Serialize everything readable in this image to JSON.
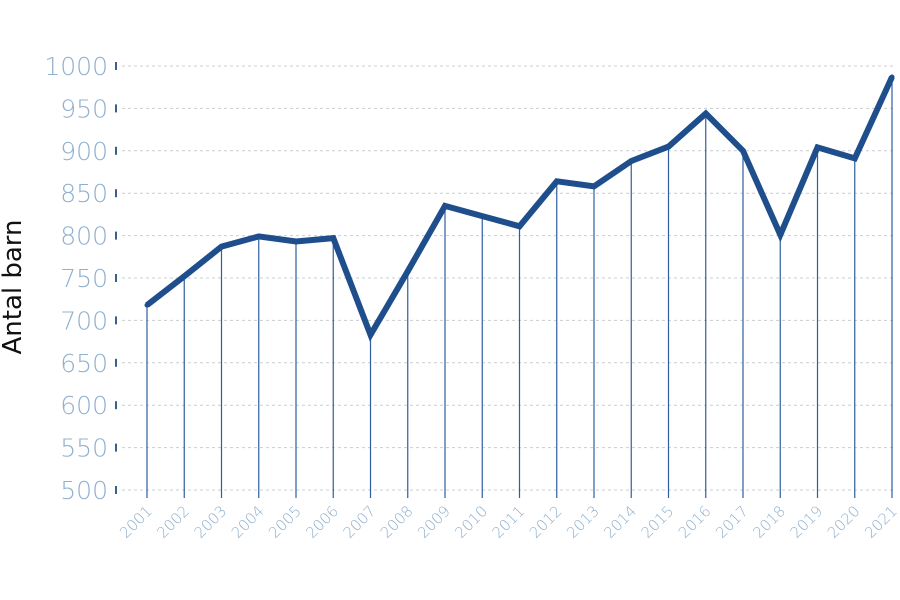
{
  "chart_data": {
    "type": "line",
    "title": "",
    "xlabel": "",
    "ylabel": "Antal barn",
    "ylim": [
      500,
      1000
    ],
    "yticks": [
      "500",
      "550",
      "600",
      "650",
      "700",
      "750",
      "800",
      "850",
      "900",
      "950",
      "1000"
    ],
    "grid": true,
    "legend": "none",
    "categories": [
      "2001",
      "2002",
      "2003",
      "2004",
      "2005",
      "2006",
      "2007",
      "2008",
      "2009",
      "2010",
      "2011",
      "2012",
      "2013",
      "2014",
      "2015",
      "2016",
      "2017",
      "2018",
      "2019",
      "2020",
      "2021"
    ],
    "series": [
      {
        "values": [
          718,
          752,
          787,
          799,
          793,
          797,
          683,
          758,
          835,
          823,
          811,
          864,
          858,
          888,
          905,
          944,
          900,
          801,
          904,
          891,
          987
        ]
      }
    ]
  },
  "colors": {
    "line": "#1f4e8c",
    "drop": "#2f5f9e",
    "tick_text": "#8fb0cf",
    "grid": "#c8cdd3",
    "axis_mark": "#3a5f8f"
  }
}
